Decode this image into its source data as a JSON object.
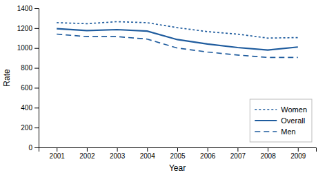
{
  "chart_data": {
    "type": "line",
    "x": [
      2001,
      2002,
      2003,
      2004,
      2005,
      2006,
      2007,
      2008,
      2009
    ],
    "series": [
      {
        "name": "Women",
        "color": "#1f5c9e",
        "line_style": "dotted",
        "values": [
          1255,
          1245,
          1265,
          1255,
          1205,
          1165,
          1140,
          1100,
          1105
        ]
      },
      {
        "name": "Overall",
        "color": "#1f5c9e",
        "line_style": "solid",
        "values": [
          1195,
          1175,
          1185,
          1170,
          1085,
          1040,
          1005,
          980,
          1010
        ]
      },
      {
        "name": "Men",
        "color": "#1f5c9e",
        "line_style": "dashed",
        "values": [
          1140,
          1115,
          1115,
          1090,
          1000,
          960,
          930,
          905,
          905
        ]
      }
    ],
    "xlabel": "Year",
    "ylabel": "Rate",
    "xlim": [
      2000.4,
      2009.6
    ],
    "xticks": [
      2001,
      2002,
      2003,
      2004,
      2005,
      2006,
      2007,
      2008,
      2009
    ],
    "ylim": [
      0,
      1400
    ],
    "yticks": [
      0,
      200,
      400,
      600,
      800,
      1000,
      1200,
      1400
    ],
    "legend": "lower right"
  }
}
